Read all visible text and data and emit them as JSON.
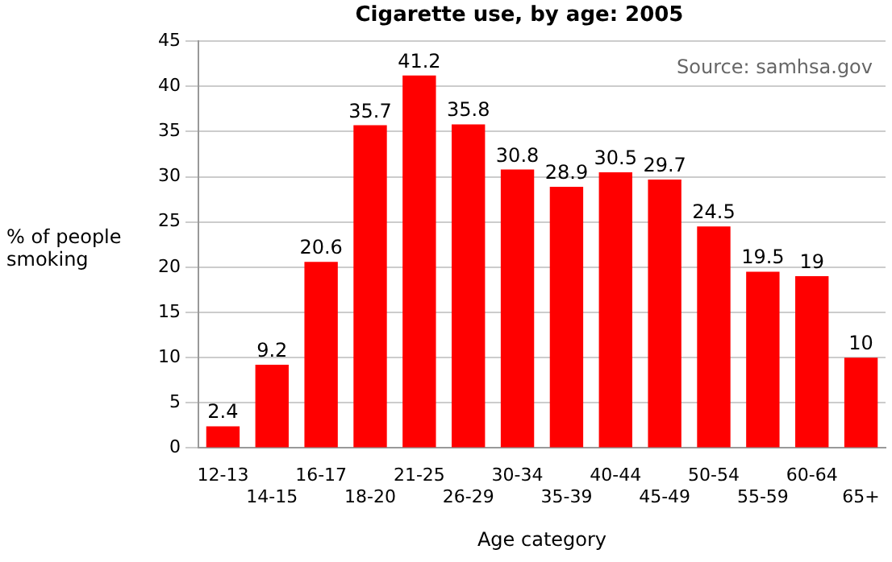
{
  "chart_data": {
    "type": "bar",
    "title": "Cigarette use, by age: 2005",
    "xlabel": "Age category",
    "ylabel": "% of people smoking",
    "annotations": [
      "Source: samhsa.gov"
    ],
    "categories": [
      "12-13",
      "14-15",
      "16-17",
      "18-20",
      "21-25",
      "26-29",
      "30-34",
      "35-39",
      "40-44",
      "45-49",
      "50-54",
      "55-59",
      "60-64",
      "65+"
    ],
    "values": [
      2.4,
      9.2,
      20.6,
      35.7,
      41.2,
      35.8,
      30.8,
      28.9,
      30.5,
      29.7,
      24.5,
      19.5,
      19,
      10
    ],
    "color": "#ff0000",
    "ylim": [
      0,
      45
    ],
    "yticks": [
      0,
      5,
      10,
      15,
      20,
      25,
      30,
      35,
      40,
      45
    ],
    "grid": "y",
    "data_labels": true,
    "legend": false
  }
}
